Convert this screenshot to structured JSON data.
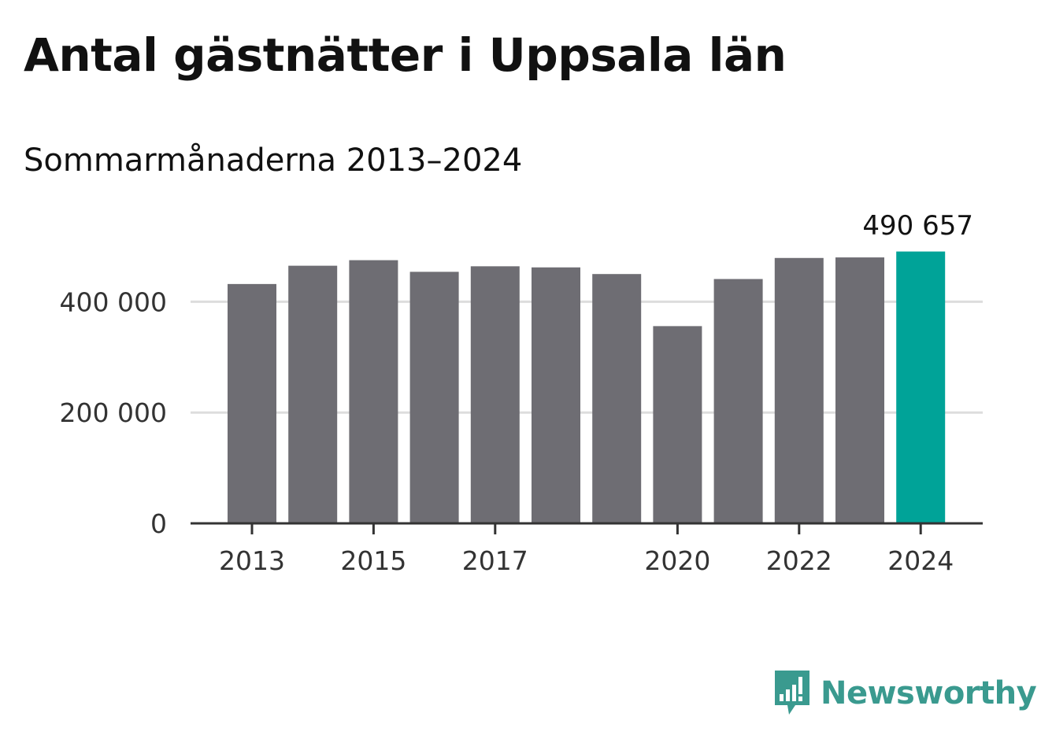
{
  "title": "Antal gästnätter i Uppsala län",
  "subtitle": "Sommarmånaderna 2013–2024",
  "brand": {
    "name": "Newsworthy",
    "color": "#3a9a8f",
    "icon": "chat-bubble-bar-chart-icon"
  },
  "colors": {
    "bar": "#6e6d73",
    "highlight": "#00a398",
    "grid": "#dddddd",
    "axis": "#333333",
    "text": "#333333"
  },
  "chart_data": {
    "type": "bar",
    "categories": [
      "2013",
      "2014",
      "2015",
      "2016",
      "2017",
      "2018",
      "2019",
      "2020",
      "2021",
      "2022",
      "2023",
      "2024"
    ],
    "values": [
      432000,
      465000,
      475000,
      454000,
      464000,
      462000,
      450000,
      356000,
      441000,
      479000,
      480000,
      490657
    ],
    "highlight_index": 11,
    "highlight_label": "490 657",
    "xtick_labels": [
      "2013",
      "2015",
      "2017",
      "2020",
      "2022",
      "2024"
    ],
    "yticks": [
      0,
      200000,
      400000
    ],
    "ytick_labels": [
      "0",
      "200 000",
      "400 000"
    ],
    "ylim": [
      0,
      500000
    ],
    "grid": true,
    "legend": false
  }
}
